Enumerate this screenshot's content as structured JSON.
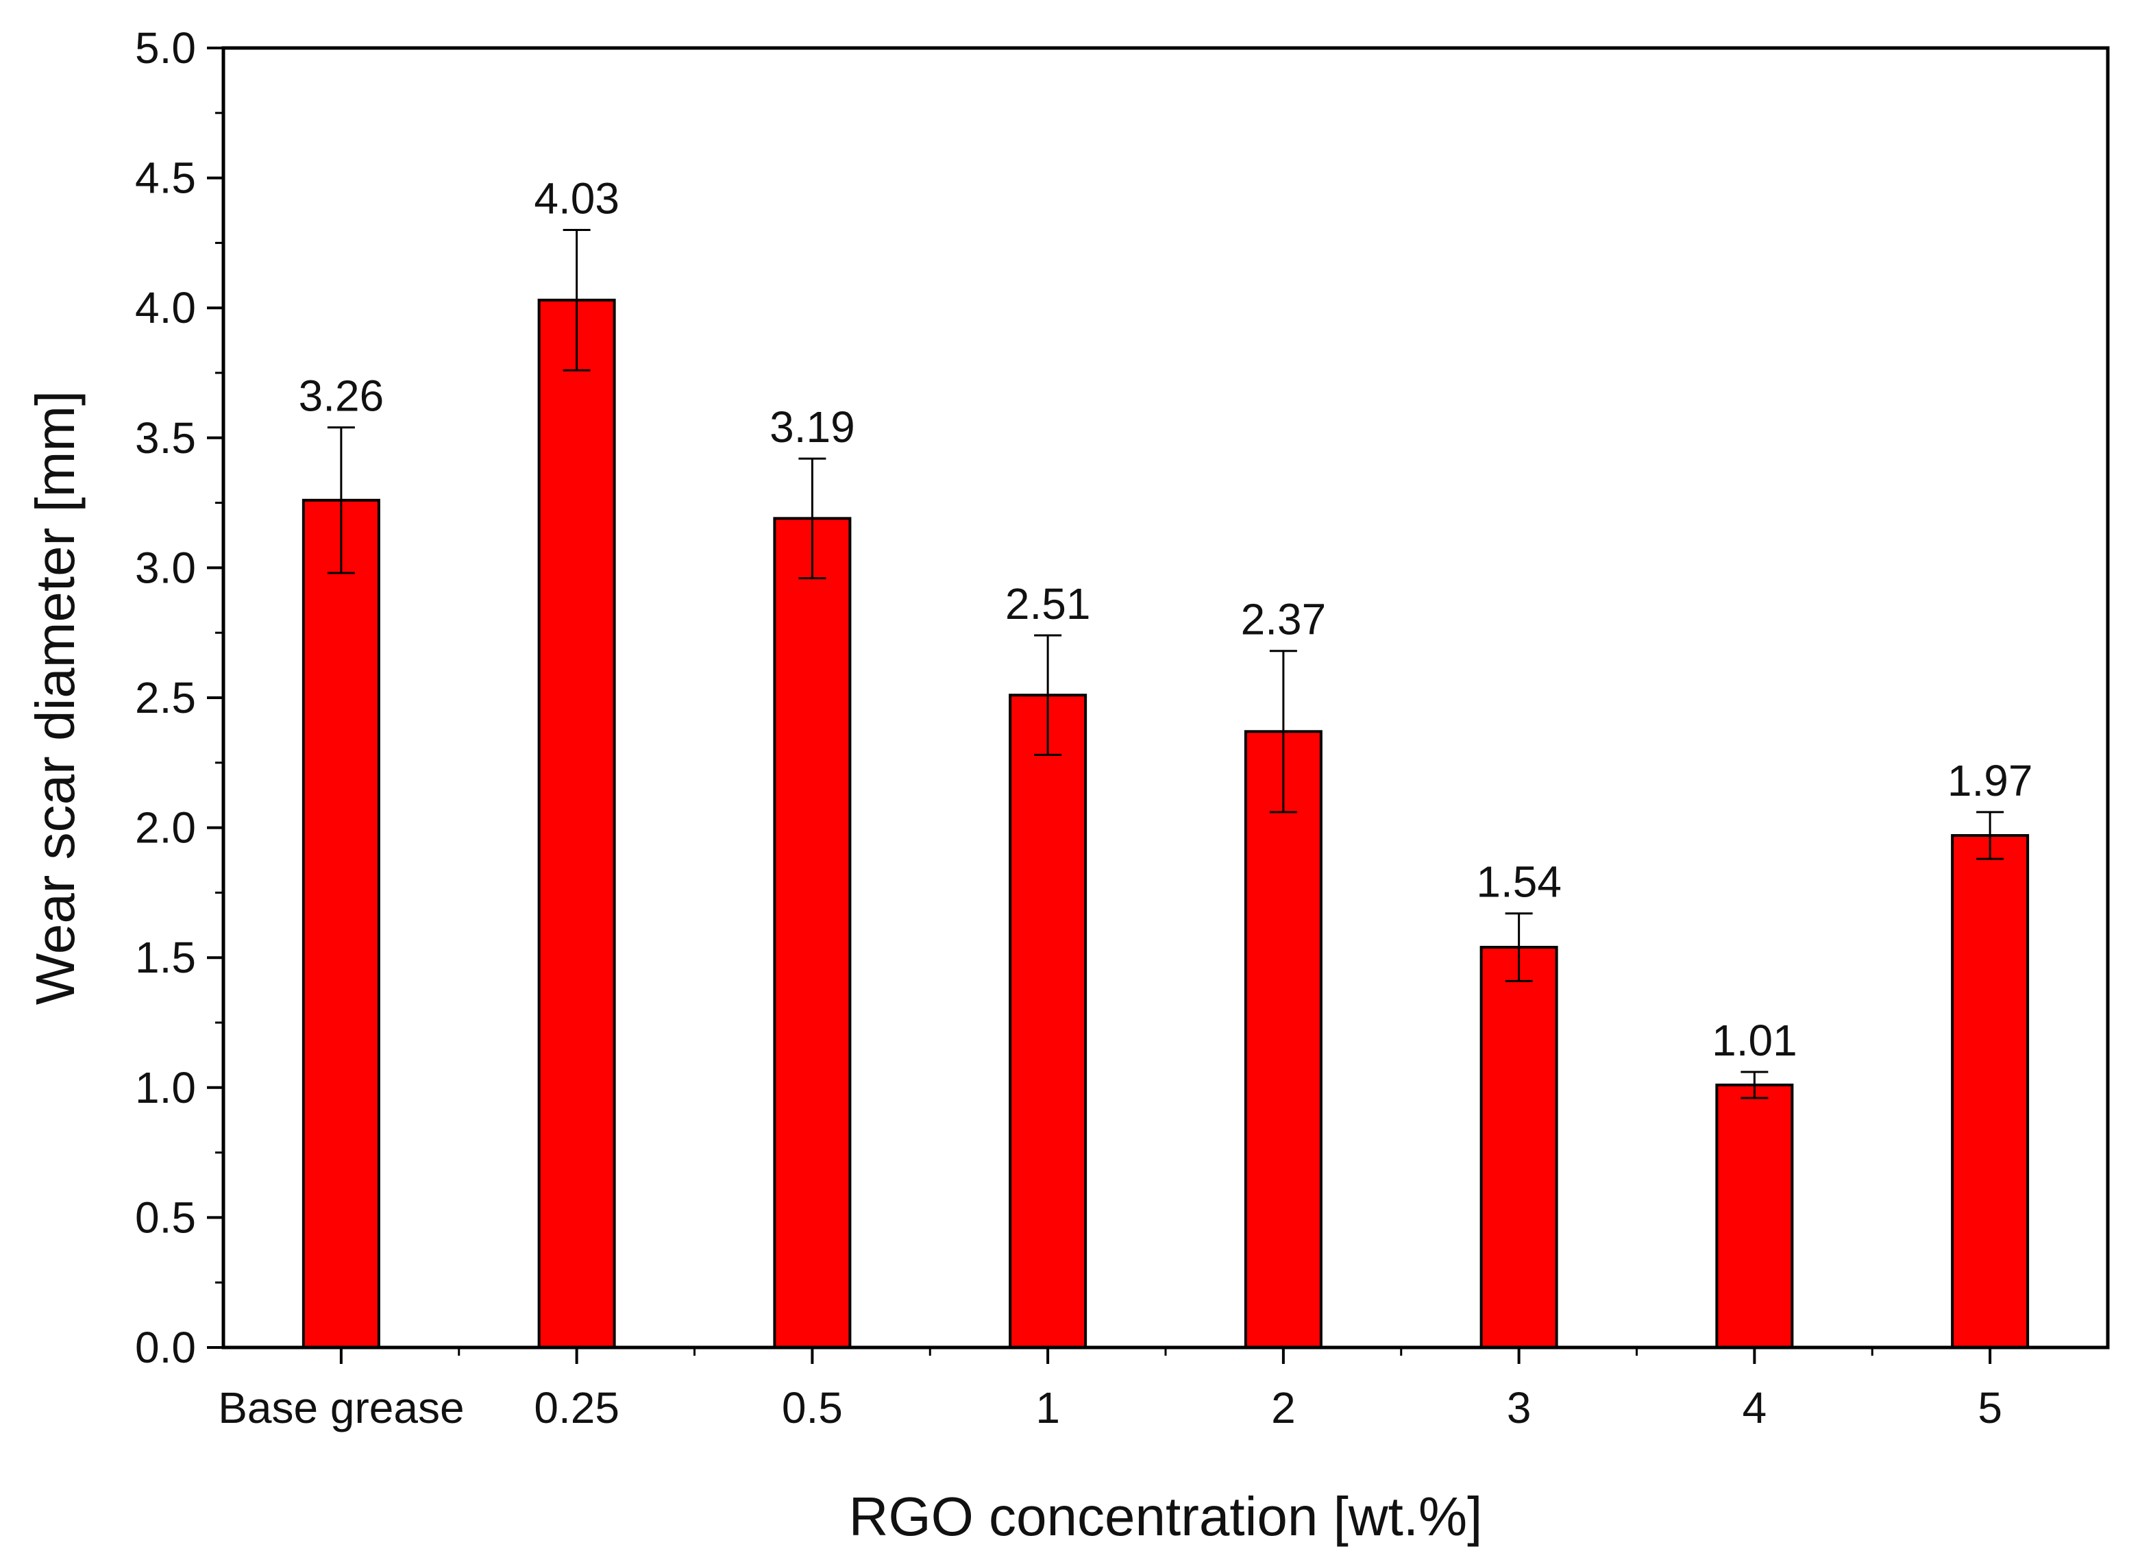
{
  "chart_data": {
    "type": "bar",
    "title": "",
    "xlabel": "RGO concentration [wt.%]",
    "ylabel": "Wear scar diameter [mm]",
    "categories": [
      "Base grease",
      "0.25",
      "0.5",
      "1",
      "2",
      "3",
      "4",
      "5"
    ],
    "values": [
      3.26,
      4.03,
      3.19,
      2.51,
      2.37,
      1.54,
      1.01,
      1.97
    ],
    "value_labels": [
      "3.26",
      "4.03",
      "3.19",
      "2.51",
      "2.37",
      "1.54",
      "1.01",
      "1.97"
    ],
    "error_bars": [
      0.28,
      0.27,
      0.23,
      0.23,
      0.31,
      0.13,
      0.05,
      0.09
    ],
    "ylim": [
      0,
      5.0
    ],
    "yticks": [
      0.0,
      0.5,
      1.0,
      1.5,
      2.0,
      2.5,
      3.0,
      3.5,
      4.0,
      4.5,
      5.0
    ],
    "ytick_labels": [
      "0.0",
      "0.5",
      "1.0",
      "1.5",
      "2.0",
      "2.5",
      "3.0",
      "3.5",
      "4.0",
      "4.5",
      "5.0"
    ],
    "bar_color": "#ff0000",
    "grid": false,
    "legend": "none"
  }
}
